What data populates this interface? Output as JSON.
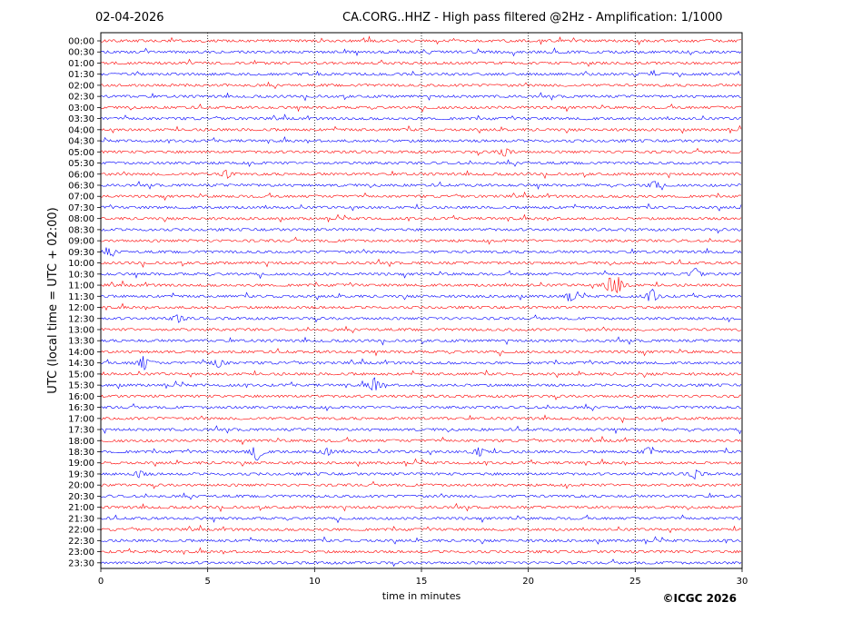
{
  "header": {
    "date": "02-04-2026",
    "title": "CA.CORG..HHZ - High pass filtered @2Hz - Amplification: 1/1000"
  },
  "footer": {
    "copyright": "©ICGC 2026"
  },
  "chart_data": {
    "type": "line",
    "title": "CA.CORG..HHZ - High pass filtered @2Hz - Amplification: 1/1000",
    "xlabel": "time in minutes",
    "ylabel": "UTC (local time = UTC + 02:00)",
    "xlim": [
      0,
      30
    ],
    "x_ticks": [
      0,
      5,
      10,
      15,
      20,
      25,
      30
    ],
    "y_tick_labels": [
      "00:00",
      "00:30",
      "01:00",
      "01:30",
      "02:00",
      "02:30",
      "03:00",
      "03:30",
      "04:00",
      "04:30",
      "05:00",
      "05:30",
      "06:00",
      "06:30",
      "07:00",
      "07:30",
      "08:00",
      "08:30",
      "09:00",
      "09:30",
      "10:00",
      "10:30",
      "11:00",
      "11:30",
      "12:00",
      "12:30",
      "13:00",
      "13:30",
      "14:00",
      "14:30",
      "15:00",
      "15:30",
      "16:00",
      "16:30",
      "17:00",
      "17:30",
      "18:00",
      "18:30",
      "19:00",
      "19:30",
      "20:00",
      "20:30",
      "21:00",
      "21:30",
      "22:00",
      "22:30",
      "23:00",
      "23:30"
    ],
    "grid": "vertical dotted lines at 5-minute intervals",
    "trace_colors": [
      "#ff0000",
      "#0000ff"
    ],
    "events": [
      {
        "row": "05:00",
        "minute": 18.9,
        "amp": 0.4
      },
      {
        "row": "06:00",
        "minute": 5.9,
        "amp": 0.35
      },
      {
        "row": "06:30",
        "minute": 25.9,
        "amp": 0.35
      },
      {
        "row": "09:30",
        "minute": 0.4,
        "amp": 0.3
      },
      {
        "row": "10:30",
        "minute": 27.8,
        "amp": 0.45
      },
      {
        "row": "11:00",
        "minute": 23.8,
        "amp": 0.6
      },
      {
        "row": "11:00",
        "minute": 24.2,
        "amp": 0.7
      },
      {
        "row": "11:30",
        "minute": 25.8,
        "amp": 0.6
      },
      {
        "row": "11:30",
        "minute": 22.0,
        "amp": 0.35
      },
      {
        "row": "12:30",
        "minute": 3.6,
        "amp": 0.35
      },
      {
        "row": "14:30",
        "minute": 2.0,
        "amp": 0.65
      },
      {
        "row": "14:30",
        "minute": 5.5,
        "amp": 0.4
      },
      {
        "row": "15:30",
        "minute": 12.8,
        "amp": 0.65
      },
      {
        "row": "18:30",
        "minute": 7.3,
        "amp": 0.85
      },
      {
        "row": "18:30",
        "minute": 17.7,
        "amp": 0.4
      },
      {
        "row": "18:30",
        "minute": 25.6,
        "amp": 0.4
      },
      {
        "row": "18:30",
        "minute": 10.6,
        "amp": 0.3
      },
      {
        "row": "19:30",
        "minute": 27.8,
        "amp": 0.4
      },
      {
        "row": "19:30",
        "minute": 1.8,
        "amp": 0.3
      }
    ]
  }
}
